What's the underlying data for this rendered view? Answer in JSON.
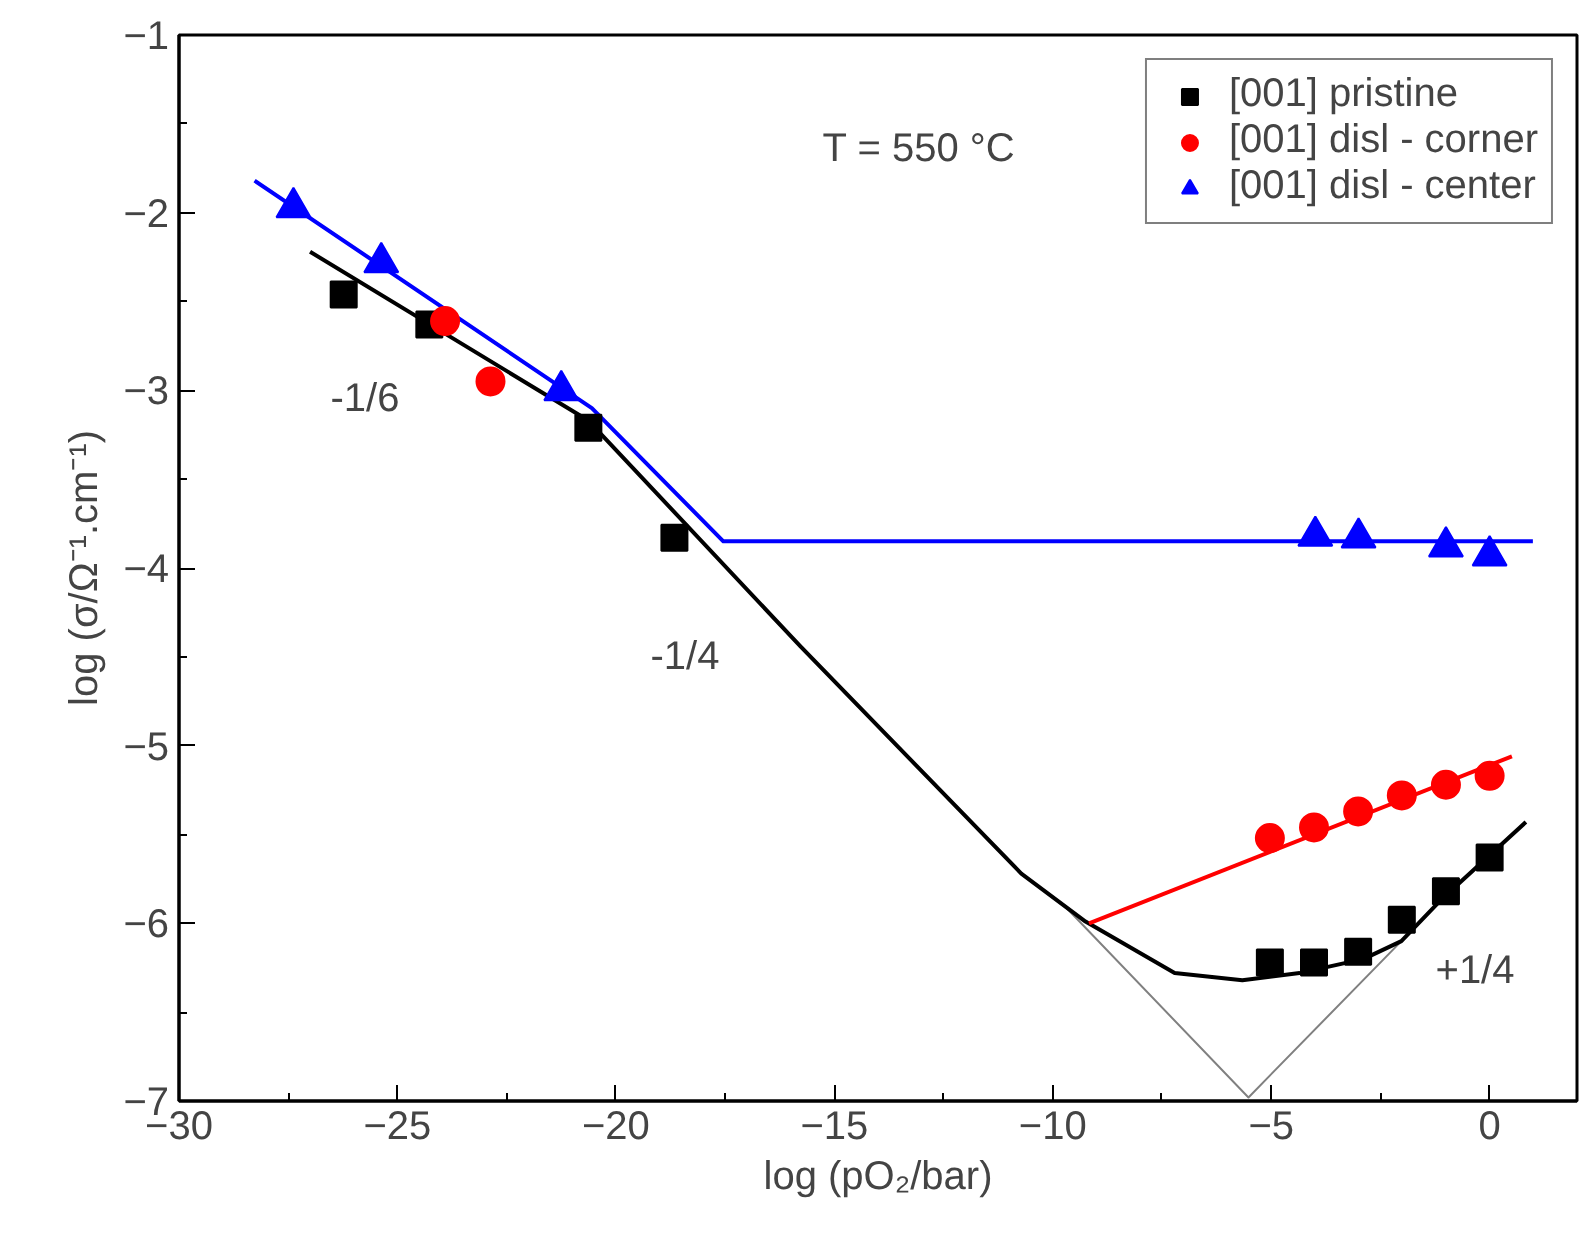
{
  "chart_data": {
    "type": "scatter",
    "xlabel": "log (pO₂/bar)",
    "ylabel": "log (σ/Ω⁻¹.cm⁻¹)",
    "xlim": [
      -30,
      2
    ],
    "ylim": [
      -7,
      -1
    ],
    "xticks": [
      -30,
      -25,
      -20,
      -15,
      -10,
      -5,
      0
    ],
    "yticks": [
      -7,
      -6,
      -5,
      -4,
      -3,
      -2,
      -1
    ],
    "grid": false,
    "legend": "top right",
    "annotations": [
      "T = 550 °C",
      "-1/6",
      "-1/4",
      "+1/4"
    ],
    "series": [
      {
        "type": "line",
        "color": "#808080",
        "line_style": "solid",
        "x": [
          -9.74,
          -5.52,
          -2.02
        ],
        "values": [
          -5.9,
          -6.98,
          -6.1
        ]
      },
      {
        "type": "line",
        "color": "#000000",
        "line_style": "solid",
        "x": [
          -27.0,
          -20.63,
          -15.78,
          -10.72,
          -9.25,
          -7.21,
          -5.66,
          -4.35,
          -2.88,
          -2.02,
          -1.08,
          0.83
        ],
        "values": [
          -2.22,
          -3.17,
          -4.44,
          -5.72,
          -5.99,
          -6.28,
          -6.32,
          -6.28,
          -6.2,
          -6.1,
          -5.86,
          -5.43
        ]
      },
      {
        "type": "line",
        "color": "#ff0000",
        "line_style": "solid",
        "x": [
          -9.17,
          0.51
        ],
        "values": [
          -6.0,
          -5.06
        ]
      },
      {
        "type": "line",
        "color": "#0000ff",
        "line_style": "solid",
        "x": [
          -28.27,
          -20.55,
          -17.54,
          0.99
        ],
        "values": [
          -1.82,
          -3.1,
          -3.85,
          -3.85
        ]
      },
      {
        "name": "[001] pristine",
        "color": "#000000",
        "marker": "square",
        "x": [
          -26.23,
          -24.27,
          -20.63,
          -18.66,
          -5.03,
          -4.02,
          -3.01,
          -2.01,
          -1.0,
          0.0
        ],
        "values": [
          -2.46,
          -2.63,
          -3.21,
          -3.83,
          -6.22,
          -6.22,
          -6.16,
          -5.98,
          -5.82,
          -5.63
        ]
      },
      {
        "name": "[001] disl - corner",
        "color": "#ff0000",
        "marker": "circle",
        "x": [
          -23.91,
          -22.87,
          -5.03,
          -4.02,
          -3.01,
          -2.01,
          -1.0,
          0.0
        ],
        "values": [
          -2.61,
          -2.95,
          -5.52,
          -5.46,
          -5.37,
          -5.28,
          -5.22,
          -5.17
        ]
      },
      {
        "name": "[001] disl - center",
        "color": "#0000ff",
        "marker": "triangle",
        "x": [
          -27.38,
          -25.37,
          -21.25,
          -3.99,
          -3.0,
          -1.0,
          0.0
        ],
        "values": [
          -1.97,
          -2.28,
          -3.0,
          -3.82,
          -3.83,
          -3.88,
          -3.93
        ]
      }
    ]
  }
}
